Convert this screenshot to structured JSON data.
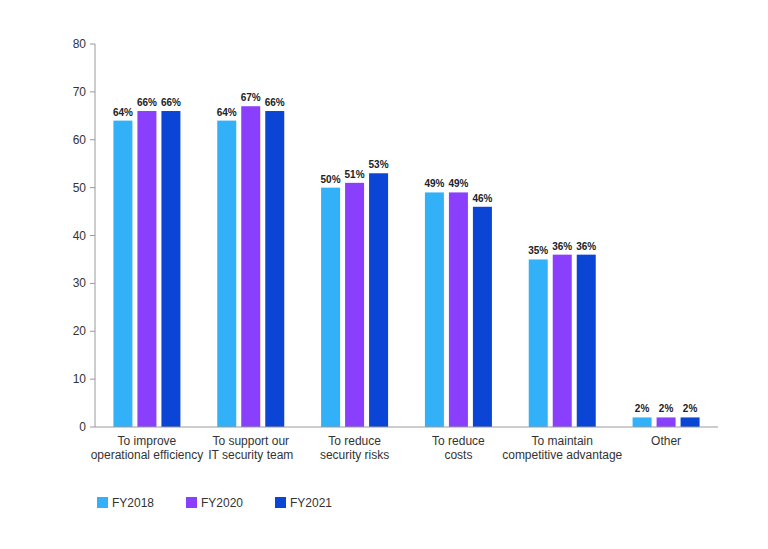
{
  "chart_data": {
    "type": "bar",
    "categories": [
      "To improve\noperational efficiency",
      "To support our\nIT security team",
      "To reduce\nsecurity risks",
      "To reduce\ncosts",
      "To maintain\ncompetitive advantage",
      "Other"
    ],
    "series": [
      {
        "name": "FY2018",
        "color": "#33b1f8",
        "values": [
          64,
          64,
          50,
          49,
          35,
          2
        ],
        "value_labels": [
          "64%",
          "64%",
          "50%",
          "49%",
          "35%",
          "2%"
        ]
      },
      {
        "name": "FY2020",
        "color": "#8a3ffc",
        "values": [
          66,
          67,
          51,
          49,
          36,
          2
        ],
        "value_labels": [
          "66%",
          "67%",
          "51%",
          "49%",
          "36%",
          "2%"
        ]
      },
      {
        "name": "FY2021",
        "color": "#0b45d6",
        "values": [
          66,
          66,
          53,
          46,
          36,
          2
        ],
        "value_labels": [
          "66%",
          "66%",
          "53%",
          "46%",
          "36%",
          "2%"
        ]
      }
    ],
    "ylim": [
      0,
      80
    ],
    "yticks": [
      0,
      10,
      20,
      30,
      40,
      50,
      60,
      70,
      80
    ],
    "grid": false,
    "data_labels": true,
    "legend": "bottom"
  }
}
